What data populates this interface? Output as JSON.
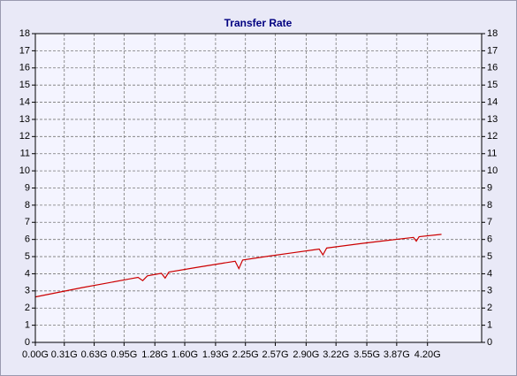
{
  "chart_data": {
    "type": "line",
    "title": "Transfer Rate",
    "x": [
      0,
      0.25,
      0.5,
      0.75,
      1.0,
      1.1,
      1.15,
      1.2,
      1.35,
      1.39,
      1.43,
      1.75,
      2.0,
      2.14,
      2.18,
      2.22,
      2.5,
      2.75,
      3.0,
      3.04,
      3.08,
      3.12,
      3.5,
      3.75,
      4.0,
      4.05,
      4.08,
      4.11,
      4.35
    ],
    "series": [
      {
        "color": "#cc0000",
        "values": [
          2.65,
          2.92,
          3.19,
          3.44,
          3.69,
          3.79,
          3.6,
          3.88,
          4.03,
          3.75,
          4.1,
          4.39,
          4.61,
          4.73,
          4.3,
          4.8,
          5.03,
          5.22,
          5.41,
          5.44,
          5.1,
          5.5,
          5.77,
          5.93,
          6.09,
          6.12,
          5.9,
          6.16,
          6.3
        ]
      }
    ],
    "xlim": [
      0,
      4.78
    ],
    "xticks": [
      {
        "value": 0,
        "label": "0.00G"
      },
      {
        "value": 0.31,
        "label": "0.31G"
      },
      {
        "value": 0.63,
        "label": "0.63G"
      },
      {
        "value": 0.95,
        "label": "0.95G"
      },
      {
        "value": 1.28,
        "label": "1.28G"
      },
      {
        "value": 1.6,
        "label": "1.60G"
      },
      {
        "value": 1.93,
        "label": "1.93G"
      },
      {
        "value": 2.25,
        "label": "2.25G"
      },
      {
        "value": 2.57,
        "label": "2.57G"
      },
      {
        "value": 2.9,
        "label": "2.90G"
      },
      {
        "value": 3.22,
        "label": "3.22G"
      },
      {
        "value": 3.55,
        "label": "3.55G"
      },
      {
        "value": 3.87,
        "label": "3.87G"
      },
      {
        "value": 4.2,
        "label": "4.20G"
      }
    ],
    "ylim": [
      0,
      18
    ],
    "yticks": [
      0,
      1,
      2,
      3,
      4,
      5,
      6,
      7,
      8,
      9,
      10,
      11,
      12,
      13,
      14,
      15,
      16,
      17,
      18
    ],
    "grid": true
  }
}
